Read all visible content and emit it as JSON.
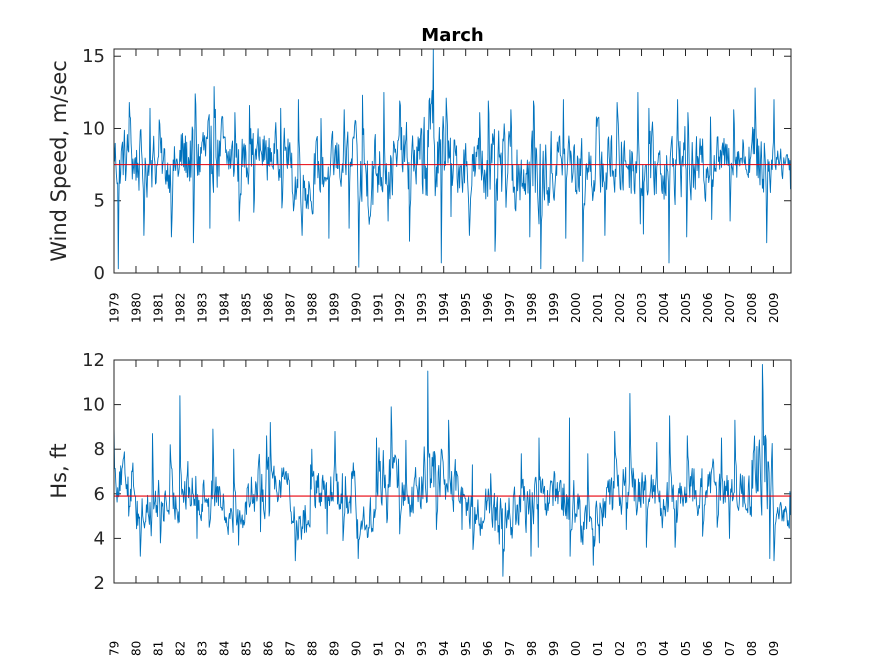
{
  "chart_data": [
    {
      "type": "line",
      "title": "March",
      "ylabel": "Wind Speed, m/sec",
      "xlabel": "",
      "ylim": [
        0,
        15.5
      ],
      "yticks": [
        0,
        5,
        10,
        15
      ],
      "year_range": [
        1979,
        2009
      ],
      "x_tick_labels": [
        "1979",
        "1980",
        "1981",
        "1982",
        "1983",
        "1984",
        "1985",
        "1986",
        "1987",
        "1988",
        "1989",
        "1990",
        "1991",
        "1992",
        "1993",
        "1994",
        "1995",
        "1996",
        "1997",
        "1998",
        "1999",
        "2000",
        "2001",
        "2002",
        "2003",
        "2004",
        "2005",
        "2006",
        "2007",
        "2008",
        "2009"
      ],
      "samples_per_year": 36,
      "mean": 7.5,
      "series_color": "#0072BD",
      "mean_color": "#e8000b",
      "yearly_means": [
        7.9,
        7.6,
        7.3,
        8.0,
        8.2,
        7.8,
        8.2,
        8.3,
        6.2,
        7.0,
        7.8,
        6.8,
        7.4,
        7.9,
        8.6,
        7.6,
        7.2,
        6.9,
        7.0,
        6.9,
        7.8,
        7.2,
        7.6,
        7.9,
        7.4,
        7.7,
        7.2,
        7.9,
        8.2,
        8.0,
        7.8
      ],
      "yearly_max": [
        11.8,
        11.4,
        10.6,
        12.4,
        12.9,
        11.1,
        11.6,
        11.4,
        12.0,
        10.7,
        11.3,
        12.3,
        12.5,
        11.9,
        15.5,
        12.1,
        11.1,
        11.9,
        11.3,
        11.9,
        12.0,
        10.8,
        11.8,
        12.5,
        11.4,
        12.0,
        11.1,
        10.8,
        11.3,
        12.8,
        12.0
      ],
      "yearly_min": [
        0.3,
        2.6,
        2.5,
        2.1,
        3.1,
        3.6,
        4.2,
        4.5,
        2.6,
        2.4,
        3.1,
        0.4,
        3.6,
        2.2,
        0.7,
        3.9,
        2.6,
        1.5,
        2.5,
        0.3,
        2.4,
        0.8,
        2.6,
        3.4,
        2.7,
        0.7,
        2.5,
        3.7,
        3.6,
        2.1,
        5.8
      ]
    },
    {
      "type": "line",
      "title": "",
      "ylabel": "Hs, ft",
      "xlabel": "",
      "ylim": [
        2,
        12
      ],
      "yticks": [
        2,
        4,
        6,
        8,
        10,
        12
      ],
      "year_range": [
        1979,
        2009
      ],
      "x_tick_labels": [
        "79",
        "80",
        "81",
        "82",
        "83",
        "84",
        "85",
        "86",
        "87",
        "88",
        "89",
        "90",
        "91",
        "92",
        "93",
        "94",
        "95",
        "96",
        "97",
        "98",
        "99",
        "00",
        "01",
        "02",
        "03",
        "04",
        "05",
        "06",
        "07",
        "08",
        "09"
      ],
      "samples_per_year": 36,
      "mean": 5.9,
      "series_color": "#0072BD",
      "mean_color": "#e8000b",
      "yearly_means": [
        6.7,
        5.2,
        5.6,
        6.1,
        6.1,
        5.2,
        6.3,
        6.7,
        4.9,
        6.0,
        6.4,
        4.8,
        6.9,
        6.0,
        7.0,
        6.3,
        5.2,
        4.8,
        5.3,
        5.5,
        5.6,
        4.8,
        5.8,
        6.3,
        5.7,
        5.5,
        6.1,
        6.3,
        5.9,
        7.0,
        5.0
      ],
      "yearly_max": [
        9.1,
        8.7,
        8.2,
        10.4,
        8.9,
        8.0,
        8.6,
        9.2,
        7.3,
        8.0,
        8.8,
        8.5,
        9.9,
        8.4,
        11.5,
        9.3,
        7.3,
        6.9,
        7.8,
        8.5,
        9.4,
        7.8,
        8.8,
        10.5,
        8.3,
        9.5,
        8.6,
        8.5,
        9.3,
        11.8,
        6.1
      ],
      "yearly_min": [
        5.0,
        3.2,
        3.8,
        4.0,
        4.5,
        3.7,
        4.3,
        5.0,
        3.0,
        4.2,
        3.9,
        3.1,
        4.7,
        4.2,
        4.4,
        4.4,
        3.5,
        2.3,
        3.2,
        3.6,
        3.2,
        2.8,
        3.8,
        4.4,
        3.6,
        3.6,
        4.1,
        4.5,
        4.0,
        3.1,
        3.0
      ]
    }
  ]
}
